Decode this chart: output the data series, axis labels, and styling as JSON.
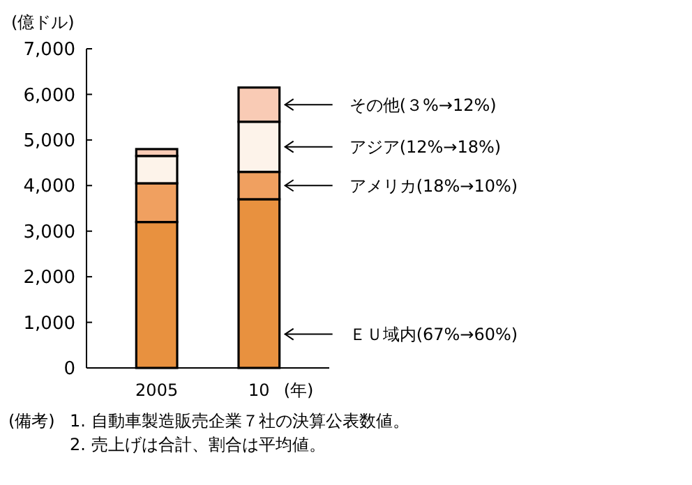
{
  "chart_data": {
    "type": "bar",
    "stacked": true,
    "ylabel": "(億ドル)",
    "xlabel": "(年)",
    "categories": [
      "2005",
      "10"
    ],
    "series": [
      {
        "name": "ＥＵ域内(67%→60%)",
        "color": "#e8913f",
        "values": [
          3200,
          3700
        ]
      },
      {
        "name": "アメリカ(18%→10%)",
        "color": "#f0a060",
        "values": [
          850,
          600
        ]
      },
      {
        "name": "アジア(12%→18%)",
        "color": "#fdf3ea",
        "values": [
          600,
          1100
        ]
      },
      {
        "name": "その他(３%→12%)",
        "color": "#f9cbb5",
        "values": [
          150,
          750
        ]
      }
    ],
    "ylim": [
      0,
      7000
    ],
    "yticks": [
      0,
      {
        "value": 1000,
        "label": "1,000"
      },
      {
        "value": 2000,
        "label": "2,000"
      },
      {
        "value": 3000,
        "label": "3,000"
      },
      {
        "value": 4000,
        "label": "4,000"
      },
      {
        "value": 5000,
        "label": "5,000"
      },
      {
        "value": 6000,
        "label": "6,000"
      },
      {
        "value": 7000,
        "label": "7,000"
      }
    ],
    "grid": false,
    "legend": "right",
    "annotations": [
      "(備考)",
      "1. 自動車製造販売企業７社の決算公表数値。",
      "2. 売上げは合計、割合は平均値。"
    ]
  }
}
